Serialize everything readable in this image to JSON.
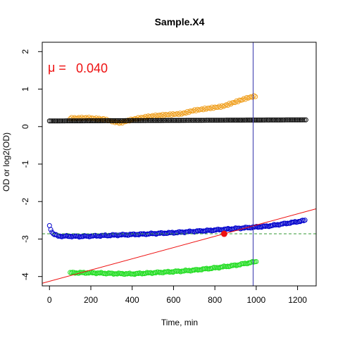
{
  "chart_data": {
    "type": "scatter",
    "title": "Sample.X4",
    "xlabel": "Time, min",
    "ylabel": "OD or log2(OD)",
    "xlim": [
      -35,
      1290
    ],
    "ylim": [
      -4.25,
      2.25
    ],
    "x_ticks": [
      "0",
      "200",
      "400",
      "600",
      "800",
      "1000",
      "1200"
    ],
    "y_ticks": [
      "2",
      "1",
      "0",
      "-1",
      "-2",
      "-3",
      "-4"
    ],
    "annotation": {
      "symbol": "μ =",
      "value": "0.040"
    },
    "colors": {
      "orange": "#f0a020",
      "black": "#000000",
      "blue": "#0000cc",
      "green": "#22dd22",
      "fit_line": "#ee1111",
      "baseline": "#339933",
      "vline": "#3333aa",
      "point": "#ee1111",
      "annotation": "#ee1111"
    },
    "series": [
      {
        "color": "#f0a020",
        "style": "points",
        "x_range": [
          100,
          1000
        ],
        "step": 7,
        "keypoints": [
          [
            100,
            0.22
          ],
          [
            180,
            0.25
          ],
          [
            260,
            0.22
          ],
          [
            340,
            0.1
          ],
          [
            400,
            0.18
          ],
          [
            480,
            0.25
          ],
          [
            560,
            0.3
          ],
          [
            640,
            0.35
          ],
          [
            700,
            0.45
          ],
          [
            760,
            0.5
          ],
          [
            840,
            0.55
          ],
          [
            900,
            0.65
          ],
          [
            960,
            0.75
          ],
          [
            1000,
            0.8
          ]
        ]
      },
      {
        "color": "#000000",
        "style": "points",
        "x_range": [
          0,
          1240
        ],
        "step": 8,
        "keypoints": [
          [
            0,
            0.15
          ],
          [
            1240,
            0.18
          ]
        ]
      },
      {
        "color": "#0000cc",
        "style": "points",
        "x_range": [
          0,
          1240
        ],
        "step": 6,
        "keypoints": [
          [
            0,
            -2.65
          ],
          [
            15,
            -2.85
          ],
          [
            40,
            -2.92
          ],
          [
            150,
            -2.93
          ],
          [
            300,
            -2.9
          ],
          [
            450,
            -2.87
          ],
          [
            600,
            -2.83
          ],
          [
            750,
            -2.78
          ],
          [
            850,
            -2.74
          ],
          [
            950,
            -2.7
          ],
          [
            1050,
            -2.66
          ],
          [
            1150,
            -2.58
          ],
          [
            1240,
            -2.5
          ]
        ]
      },
      {
        "color": "#22dd22",
        "style": "points",
        "x_range": [
          100,
          1000
        ],
        "step": 6,
        "keypoints": [
          [
            100,
            -3.9
          ],
          [
            200,
            -3.9
          ],
          [
            300,
            -3.92
          ],
          [
            400,
            -3.93
          ],
          [
            500,
            -3.9
          ],
          [
            600,
            -3.87
          ],
          [
            700,
            -3.83
          ],
          [
            800,
            -3.77
          ],
          [
            900,
            -3.7
          ],
          [
            960,
            -3.64
          ],
          [
            1000,
            -3.6
          ]
        ]
      }
    ],
    "fit_line": {
      "slope": 0.0015,
      "x": 845,
      "y": -2.86
    },
    "fit_point": {
      "x": 845,
      "y": -2.86
    },
    "baseline_y": -2.86,
    "vertical_line_x": 985
  }
}
